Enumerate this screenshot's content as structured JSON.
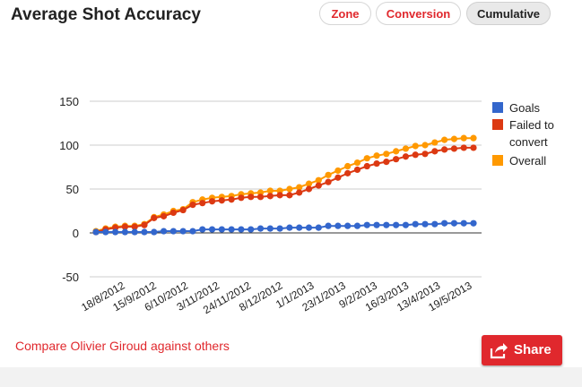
{
  "title": "Average Shot Accuracy",
  "tabs": [
    {
      "label": "Zone",
      "active": false
    },
    {
      "label": "Conversion",
      "active": false
    },
    {
      "label": "Cumulative",
      "active": true
    }
  ],
  "compare_link": "Compare Olivier Giroud against others",
  "share": {
    "label": "Share",
    "icon": "share-arrow-icon"
  },
  "colors": {
    "accent": "#e0282d",
    "goals": "#3366cc",
    "failed": "#dc3912",
    "overall": "#ff9900"
  },
  "chart_data": {
    "type": "line",
    "title": "",
    "xlabel": "",
    "ylabel": "",
    "ylim": [
      -50,
      150
    ],
    "yticks": [
      -50,
      0,
      50,
      100,
      150
    ],
    "grid": true,
    "legend_position": "right",
    "x_tick_labels": [
      "18/8/2012",
      "15/9/2012",
      "6/10/2012",
      "3/11/2012",
      "24/11/2012",
      "8/12/2012",
      "1/1/2013",
      "23/1/2013",
      "9/2/2013",
      "16/3/2013",
      "13/4/2013",
      "19/5/2013"
    ],
    "series": [
      {
        "name": "Goals",
        "color": "#3366cc",
        "values": [
          1,
          1,
          1,
          1,
          1,
          1,
          1,
          2,
          2,
          2,
          2,
          4,
          4,
          4,
          4,
          4,
          4,
          5,
          5,
          5,
          6,
          6,
          6,
          6,
          8,
          8,
          8,
          8,
          9,
          9,
          9,
          9,
          9,
          10,
          10,
          10,
          11,
          11,
          11,
          11
        ]
      },
      {
        "name": "Failed to\nconvert",
        "color": "#dc3912",
        "values": [
          1,
          4,
          6,
          7,
          7,
          9,
          17,
          19,
          23,
          26,
          32,
          34,
          36,
          37,
          38,
          40,
          41,
          41,
          42,
          43,
          43,
          46,
          50,
          54,
          58,
          63,
          68,
          72,
          76,
          79,
          81,
          84,
          87,
          89,
          90,
          93,
          95,
          96,
          97,
          97
        ]
      },
      {
        "name": "Overall",
        "color": "#ff9900",
        "values": [
          2,
          5,
          7,
          8,
          8,
          10,
          18,
          21,
          25,
          27,
          35,
          38,
          40,
          41,
          42,
          44,
          45,
          46,
          48,
          48,
          50,
          52,
          56,
          60,
          66,
          71,
          76,
          80,
          85,
          88,
          90,
          93,
          96,
          99,
          100,
          103,
          106,
          107,
          108,
          108
        ]
      }
    ]
  }
}
